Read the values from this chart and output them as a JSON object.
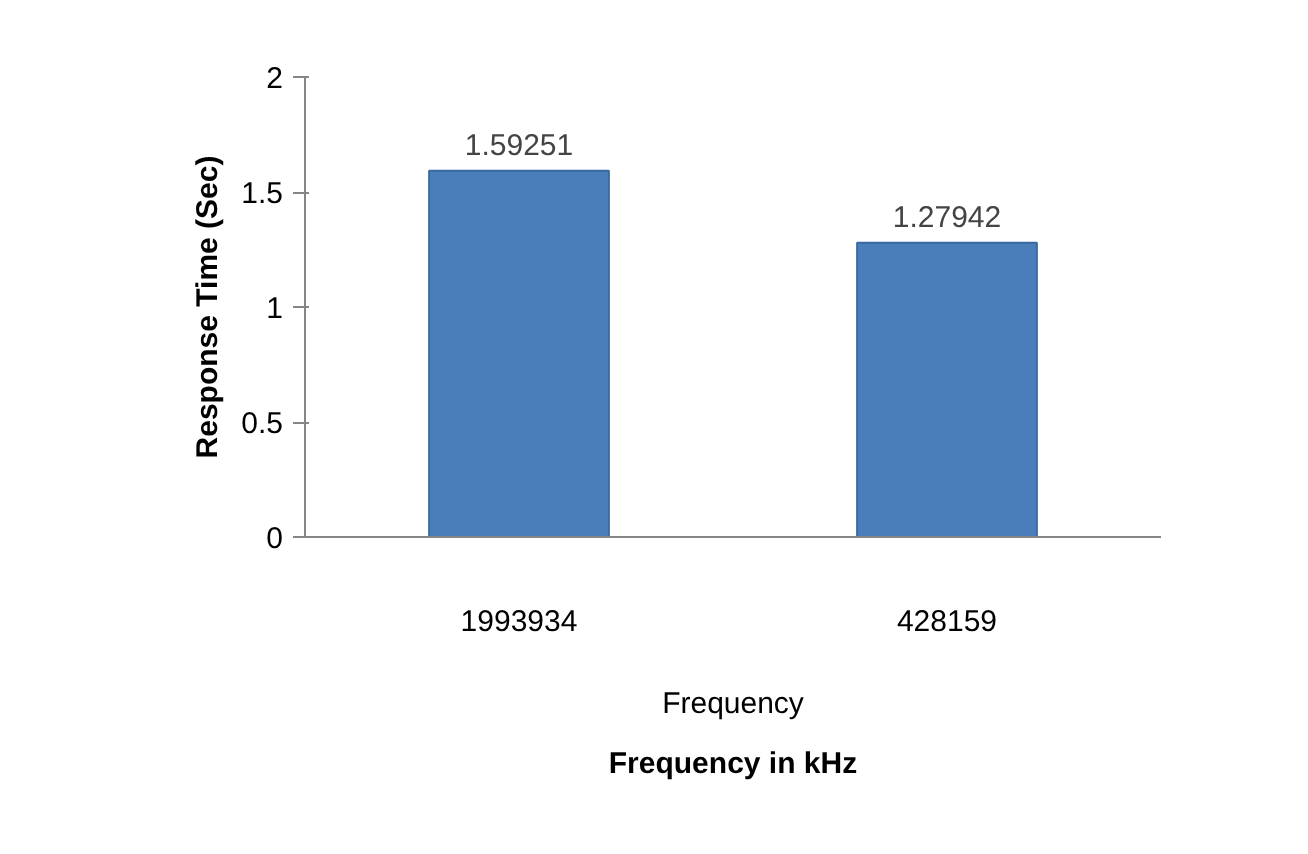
{
  "chart_data": {
    "type": "bar",
    "categories": [
      "1993934",
      "428159"
    ],
    "values": [
      1.59251,
      1.27942
    ],
    "color": "#4a7ebb",
    "xlabel": "Frequency in kHz",
    "ylabel": "Response Time (Sec)",
    "annotations": [
      "Frequency"
    ],
    "ylim": [
      0,
      2
    ],
    "yticks": [
      0,
      0.5,
      1,
      1.5,
      2
    ],
    "data_labels": true,
    "grid": false
  }
}
